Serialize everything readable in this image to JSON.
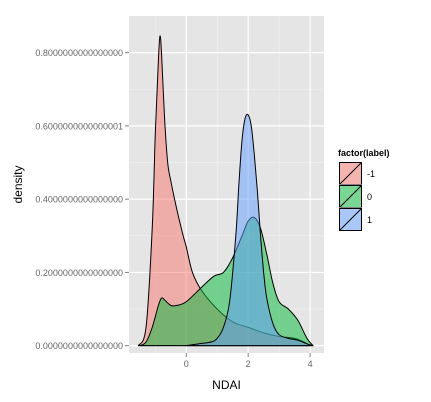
{
  "chart_data": {
    "type": "area",
    "title": "",
    "xlabel": "NDAI",
    "ylabel": "density",
    "xlim": [
      -1.85,
      4.45
    ],
    "ylim": [
      -0.02,
      0.9
    ],
    "x_ticks": [
      0,
      2,
      4
    ],
    "x_tick_labels": [
      "0",
      "2",
      "4"
    ],
    "y_ticks": [
      0.0,
      0.2,
      0.4,
      0.6,
      0.8
    ],
    "y_tick_labels": [
      "0.0000000000000000",
      "0.2000000000000000",
      "0.4000000000000000",
      "0.6000000000000001",
      "0.8000000000000000"
    ],
    "grid": true,
    "legend_position": "right",
    "legend": {
      "title": "factor(label)",
      "entries": [
        "-1",
        "0",
        "1"
      ]
    },
    "series": [
      {
        "name": "-1",
        "color": "#f8766d",
        "x": [
          -1.55,
          -1.3,
          -1.1,
          -1.0,
          -0.9,
          -0.85,
          -0.8,
          -0.7,
          -0.6,
          -0.5,
          -0.3,
          -0.1,
          0.0,
          0.2,
          0.5,
          1.0,
          1.5,
          2.0,
          2.5,
          3.0,
          3.5,
          3.8,
          4.0
        ],
        "values": [
          0.0,
          0.05,
          0.32,
          0.58,
          0.78,
          0.845,
          0.8,
          0.62,
          0.5,
          0.45,
          0.37,
          0.3,
          0.27,
          0.2,
          0.15,
          0.1,
          0.065,
          0.05,
          0.035,
          0.025,
          0.02,
          0.01,
          0.0
        ]
      },
      {
        "name": "0",
        "color": "#00ba38",
        "x": [
          -1.5,
          -1.3,
          -1.1,
          -0.9,
          -0.8,
          -0.7,
          -0.5,
          -0.3,
          0.0,
          0.5,
          0.9,
          1.2,
          1.5,
          1.8,
          2.0,
          2.2,
          2.4,
          2.6,
          2.8,
          3.0,
          3.3,
          3.6,
          3.9,
          4.1
        ],
        "values": [
          0.0,
          0.01,
          0.05,
          0.11,
          0.13,
          0.125,
          0.11,
          0.11,
          0.12,
          0.16,
          0.19,
          0.2,
          0.24,
          0.3,
          0.34,
          0.35,
          0.32,
          0.25,
          0.17,
          0.12,
          0.1,
          0.07,
          0.02,
          0.0
        ]
      },
      {
        "name": "1",
        "color": "#619cff",
        "x": [
          0.0,
          0.4,
          0.8,
          1.0,
          1.2,
          1.4,
          1.6,
          1.7,
          1.8,
          1.9,
          2.0,
          2.1,
          2.2,
          2.3,
          2.4,
          2.5,
          2.6,
          2.8,
          3.0,
          3.3,
          3.6,
          3.9,
          4.1
        ],
        "values": [
          0.0,
          0.005,
          0.01,
          0.02,
          0.05,
          0.12,
          0.3,
          0.44,
          0.56,
          0.62,
          0.63,
          0.6,
          0.52,
          0.42,
          0.3,
          0.2,
          0.13,
          0.06,
          0.03,
          0.02,
          0.015,
          0.005,
          0.0
        ]
      }
    ]
  }
}
